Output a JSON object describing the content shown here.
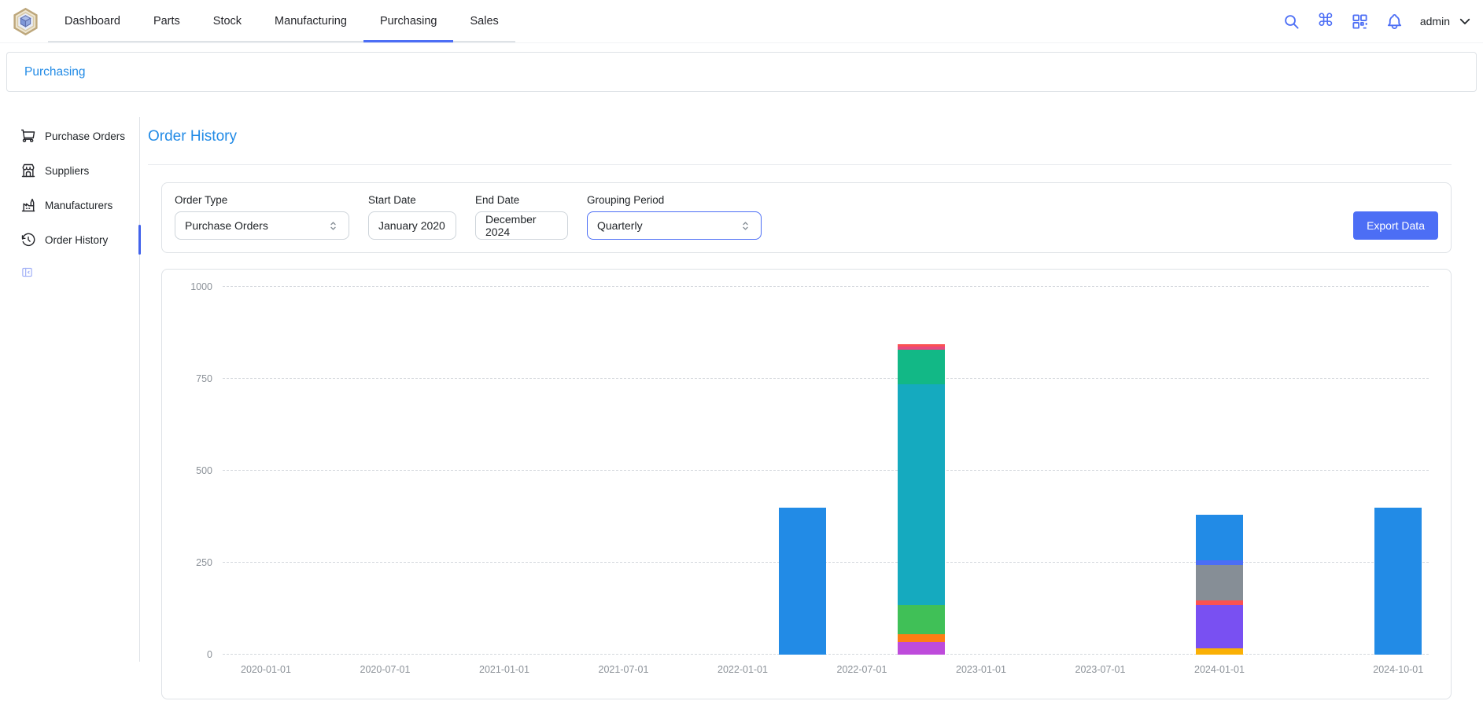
{
  "navbar": {
    "tabs": [
      "Dashboard",
      "Parts",
      "Stock",
      "Manufacturing",
      "Purchasing",
      "Sales"
    ],
    "active_tab": "Purchasing",
    "icons": [
      "search-icon",
      "command-icon",
      "qr-scan-icon",
      "bell-icon"
    ],
    "user": "admin"
  },
  "breadcrumb": {
    "label": "Purchasing"
  },
  "sidebar": {
    "items": [
      {
        "label": "Purchase Orders",
        "icon": "shopping-cart"
      },
      {
        "label": "Suppliers",
        "icon": "building-store"
      },
      {
        "label": "Manufacturers",
        "icon": "building-factory"
      },
      {
        "label": "Order History",
        "icon": "history",
        "active": true
      }
    ]
  },
  "main": {
    "title": "Order History",
    "filters": {
      "order_type": {
        "label": "Order Type",
        "value": "Purchase Orders"
      },
      "start_date": {
        "label": "Start Date",
        "value": "January 2020"
      },
      "end_date": {
        "label": "End Date",
        "value": "December 2024"
      },
      "grouping": {
        "label": "Grouping Period",
        "value": "Quarterly",
        "focused": true
      }
    },
    "export_button": "Export Data"
  },
  "chart_data": {
    "type": "bar",
    "stacked": true,
    "title": "",
    "xlabel": "",
    "ylabel": "",
    "ylim": [
      0,
      1000
    ],
    "grid": "dashed-horizontal",
    "legend": "none",
    "y_ticks": [
      0,
      250,
      500,
      750,
      1000
    ],
    "x_ticks": [
      {
        "label": "2020-01-01",
        "month": 0
      },
      {
        "label": "2020-07-01",
        "month": 6
      },
      {
        "label": "2021-01-01",
        "month": 12
      },
      {
        "label": "2021-07-01",
        "month": 18
      },
      {
        "label": "2022-01-01",
        "month": 24
      },
      {
        "label": "2022-07-01",
        "month": 30
      },
      {
        "label": "2023-01-01",
        "month": 36
      },
      {
        "label": "2023-07-01",
        "month": 42
      },
      {
        "label": "2024-01-01",
        "month": 48
      },
      {
        "label": "2024-10-01",
        "month": 57
      }
    ],
    "bars": [
      {
        "x": "2022-04-01",
        "month": 27,
        "total": 400,
        "segments": [
          {
            "color": "#228be6",
            "value": 400
          }
        ]
      },
      {
        "x": "2022-10-01",
        "month": 33,
        "total": 845,
        "segments": [
          {
            "color": "#be4bdb",
            "value": 35
          },
          {
            "color": "#fd7e14",
            "value": 20
          },
          {
            "color": "#40c057",
            "value": 80
          },
          {
            "color": "#15aabf",
            "value": 600
          },
          {
            "color": "#12b886",
            "value": 95
          },
          {
            "color": "#e64980",
            "value": 8
          },
          {
            "color": "#fa5252",
            "value": 7
          }
        ]
      },
      {
        "x": "2024-01-01",
        "month": 48,
        "total": 380,
        "segments": [
          {
            "color": "#fab005",
            "value": 17
          },
          {
            "color": "#7950f2",
            "value": 118
          },
          {
            "color": "#fa5252",
            "value": 13
          },
          {
            "color": "#868e96",
            "value": 96
          },
          {
            "color": "#4c6ef5",
            "value": 13
          },
          {
            "color": "#228be6",
            "value": 123
          }
        ]
      },
      {
        "x": "2024-10-01",
        "month": 57,
        "total": 400,
        "segments": [
          {
            "color": "#228be6",
            "value": 400
          }
        ]
      }
    ]
  },
  "colors": {
    "accent_indigo": "#4c6ef5",
    "link_blue": "#228be6",
    "border": "#dee2e6",
    "axis_text": "#8b9198",
    "gridline": "#d4d8dd"
  }
}
